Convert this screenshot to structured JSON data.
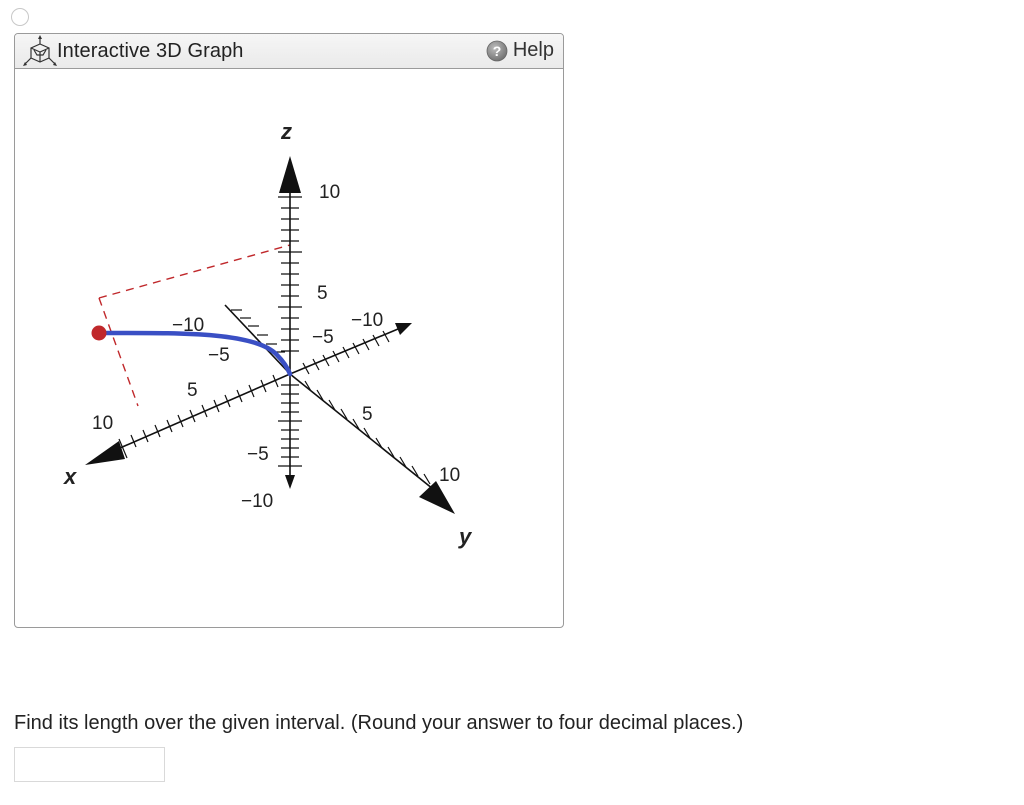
{
  "panel": {
    "title": "Interactive 3D Graph",
    "help_label": "Help",
    "title_icon": "3d-cube-icon",
    "help_icon": "question-circle-icon"
  },
  "graph": {
    "axes": {
      "x_label": "x",
      "y_label": "y",
      "z_label": "z"
    },
    "ticks": {
      "z_10": "10",
      "z_5": "5",
      "z_neg5": "−5",
      "z_neg10": "−10",
      "x_10": "10",
      "x_5": "5",
      "x_neg5": "−5",
      "x_neg10": "−10",
      "y_10": "10",
      "y_5": "5",
      "y_neg5": "−5",
      "y_neg10": "−10"
    },
    "colors": {
      "curve": "#3a4fc4",
      "point": "#c0282b",
      "dashed_guides": "#c0282b",
      "axes": "#111111"
    }
  },
  "question": {
    "text": "Find its length over the given interval. (Round your answer to four decimal places.)",
    "answer_value": "",
    "answer_placeholder": ""
  }
}
